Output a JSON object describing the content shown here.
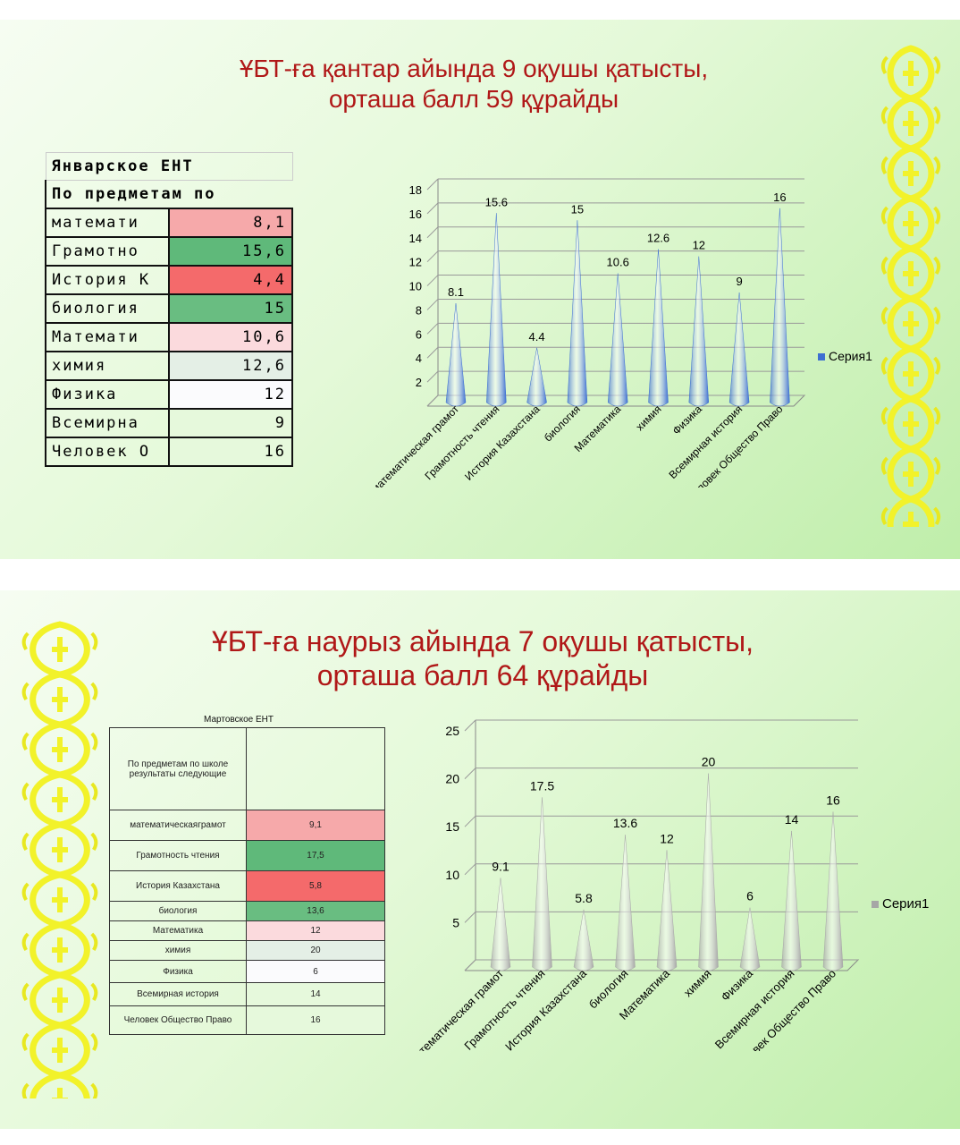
{
  "slide1": {
    "title_line1": "ҰБТ-ға қантар айында 9 оқушы қатысты,",
    "title_line2": "орташа балл 59  құрайды",
    "table": {
      "header1": "Январское  ЕНТ",
      "header2": "По предметам по",
      "rows": [
        {
          "label": "математи",
          "value": "8,1",
          "color": "#f6a9aa"
        },
        {
          "label": "Грамотно",
          "value": "15,6",
          "color": "#5fb97a"
        },
        {
          "label": "История К",
          "value": "4,4",
          "color": "#f46a6b"
        },
        {
          "label": "биология",
          "value": "15",
          "color": "#69bd81"
        },
        {
          "label": "Математи",
          "value": "10,6",
          "color": "#fbdadd"
        },
        {
          "label": "химия",
          "value": "12,6",
          "color": "#e4efe6"
        },
        {
          "label": "Физика",
          "value": "12",
          "color": "#fbfbfd"
        },
        {
          "label": "Всемирна",
          "value": "9",
          "color": "#e6f9dc"
        },
        {
          "label": "Человек О",
          "value": "16",
          "color": "#e6f9dc"
        }
      ]
    }
  },
  "slide2": {
    "title_line1": "ҰБТ-ға наурыз  айында 7 оқушы қатысты,",
    "title_line2": "орташа балл 64 құрайды",
    "table": {
      "caption": "Мартовское    ЕНТ",
      "header": "По предметам по школе результаты следующие",
      "rows": [
        {
          "label": "математическаяграмот",
          "value": "9,1",
          "color": "#f6a9aa"
        },
        {
          "label": "Грамотность чтения",
          "value": "17,5",
          "color": "#5fb97a"
        },
        {
          "label": "История Казахстана",
          "value": "5,8",
          "color": "#f46a6b"
        },
        {
          "label": "биология",
          "value": "13,6",
          "color": "#69bd81"
        },
        {
          "label": "Математика",
          "value": "12",
          "color": "#fbdadd"
        },
        {
          "label": "химия",
          "value": "20",
          "color": "#e4efe6"
        },
        {
          "label": "Физика",
          "value": "6",
          "color": "#fbfbfd"
        },
        {
          "label": "Всемирная история",
          "value": "14",
          "color": "#e6f9dc"
        },
        {
          "label": "Человек Общество Право",
          "value": "16",
          "color": "#e6f9dc"
        }
      ]
    }
  },
  "chart_data": [
    {
      "type": "bar",
      "subtype": "3d-cone",
      "title": "",
      "legend": [
        "Серия1"
      ],
      "legend_position": "right",
      "categories": [
        "математическая грамот",
        "Грамотность чтения",
        "История Казахстана",
        "биология",
        "Математика",
        "химия",
        "Физика",
        "Всемирная история",
        "Человек Общество Право"
      ],
      "series": [
        {
          "name": "Серия1",
          "values": [
            8.1,
            15.6,
            4.4,
            15,
            10.6,
            12.6,
            12,
            9,
            16
          ],
          "color": "#3d6fd1"
        }
      ],
      "ylim": [
        0,
        18
      ],
      "yticks": [
        2,
        4,
        6,
        8,
        10,
        12,
        14,
        16,
        18
      ],
      "grid": true
    },
    {
      "type": "bar",
      "subtype": "3d-cone",
      "title": "",
      "legend": [
        "Серия1"
      ],
      "legend_position": "right",
      "categories": [
        "математическая грамот",
        "Грамотность чтения",
        "История Казахстана",
        "биология",
        "Математика",
        "химия",
        "Физика",
        "Всемирная история",
        "Человек Общество Право"
      ],
      "series": [
        {
          "name": "Серия1",
          "values": [
            9.1,
            17.5,
            5.8,
            13.6,
            12,
            20,
            6,
            14,
            16
          ],
          "color": "#a6a6a6"
        }
      ],
      "ylim": [
        0,
        25
      ],
      "yticks": [
        5,
        10,
        15,
        20,
        25
      ],
      "grid": true
    }
  ]
}
